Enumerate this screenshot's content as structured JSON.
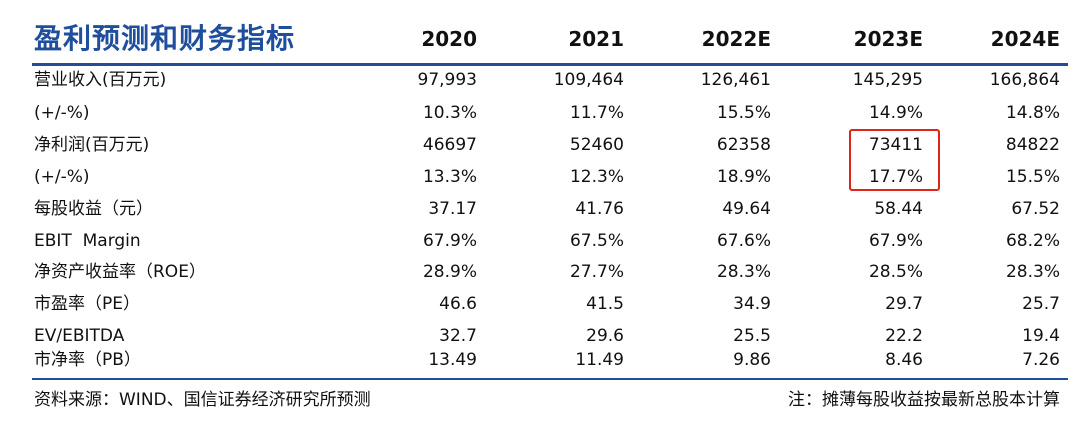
{
  "table": {
    "title": "盈利预测和财务指标",
    "years": [
      "2020",
      "2021",
      "2022E",
      "2023E",
      "2024E"
    ],
    "rows": [
      {
        "label": "营业收入(百万元)",
        "values": [
          "97,993",
          "109,464",
          "126,461",
          "145,295",
          "166,864"
        ]
      },
      {
        "label": "(+/-%)",
        "values": [
          "10.3%",
          "11.7%",
          "15.5%",
          "14.9%",
          "14.8%"
        ]
      },
      {
        "label": "净利润(百万元)",
        "values": [
          "46697",
          "52460",
          "62358",
          "73411",
          "84822"
        ]
      },
      {
        "label": "(+/-%)",
        "values": [
          "13.3%",
          "12.3%",
          "18.9%",
          "17.7%",
          "15.5%"
        ]
      },
      {
        "label": "每股收益（元）",
        "values": [
          "37.17",
          "41.76",
          "49.64",
          "58.44",
          "67.52"
        ]
      },
      {
        "label": "EBIT  Margin",
        "values": [
          "67.9%",
          "67.5%",
          "67.6%",
          "67.9%",
          "68.2%"
        ]
      },
      {
        "label": "净资产收益率（ROE）",
        "values": [
          "28.9%",
          "27.7%",
          "28.3%",
          "28.5%",
          "28.3%"
        ]
      },
      {
        "label": "市盈率（PE）",
        "values": [
          "46.6",
          "41.5",
          "34.9",
          "29.7",
          "25.7"
        ]
      },
      {
        "label": "EV/EBITDA",
        "values": [
          "32.7",
          "29.6",
          "25.5",
          "22.2",
          "19.4"
        ]
      },
      {
        "label": "市净率（PB）",
        "values": [
          "13.49",
          "11.49",
          "9.86",
          "8.46",
          "7.26"
        ]
      }
    ]
  },
  "footer": {
    "source": "资料来源：WIND、国信证券经济研究所预测",
    "note": "注：摊薄每股收益按最新总股本计算"
  },
  "colors": {
    "title": "#1f4e9c",
    "rule": "#1f4e9c",
    "highlight": "#e0241c"
  }
}
